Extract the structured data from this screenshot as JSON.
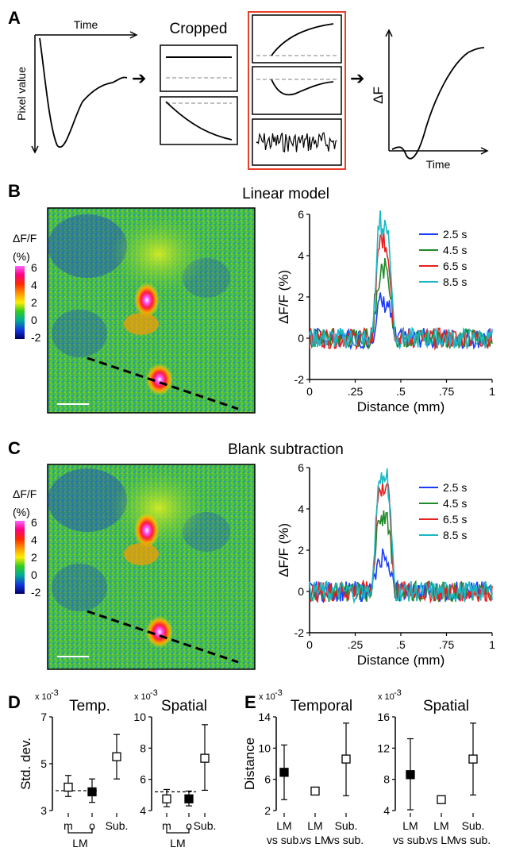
{
  "panels": {
    "A": "A",
    "B": "B",
    "C": "C",
    "D": "D",
    "E": "E"
  },
  "panelA": {
    "time_label": "Time",
    "pixel_label": "Pixel value",
    "cropped_label": "Cropped",
    "deltaF_label": "ΔF",
    "time_label2": "Time"
  },
  "colorbar": {
    "title_line1": "ΔF/F",
    "title_line2": "(%)",
    "ticks": [
      "6",
      "4",
      "2",
      "0",
      "-2"
    ],
    "colors": [
      "#ff00ff",
      "#ff2020",
      "#ff9900",
      "#ffff00",
      "#00dd00",
      "#00aaaa",
      "#0022dd",
      "#00006e"
    ]
  },
  "colors": {
    "2.5 s": "#1a3cff",
    "4.5 s": "#1f8a2a",
    "6.5 s": "#e8201f",
    "8.5 s": "#19b9c4",
    "panelA_box": "#e8402a"
  },
  "chart_data": [
    {
      "id": "B",
      "type": "line",
      "title": "Linear model",
      "xlabel": "Distance (mm)",
      "ylabel": "ΔF/F (%)",
      "xlim": [
        0,
        1
      ],
      "ylim": [
        -2,
        6
      ],
      "xticks": [
        "0",
        ".25",
        ".5",
        ".75",
        "1"
      ],
      "yticks": [
        "6",
        "4",
        "2",
        "0",
        "-2"
      ],
      "legend_position": "top-right",
      "series": [
        {
          "name": "2.5 s",
          "peak": 1.8
        },
        {
          "name": "4.5 s",
          "peak": 3.3
        },
        {
          "name": "6.5 s",
          "peak": 4.7
        },
        {
          "name": "8.5 s",
          "peak": 5.7
        }
      ]
    },
    {
      "id": "C",
      "type": "line",
      "title": "Blank subtraction",
      "xlabel": "Distance (mm)",
      "ylabel": "ΔF/F (%)",
      "xlim": [
        0,
        1
      ],
      "ylim": [
        -2,
        6
      ],
      "xticks": [
        "0",
        ".25",
        ".5",
        ".75",
        "1"
      ],
      "yticks": [
        "6",
        "4",
        "2",
        "0",
        "-2"
      ],
      "legend_position": "top-right",
      "series": [
        {
          "name": "2.5 s",
          "peak": 1.7
        },
        {
          "name": "4.5 s",
          "peak": 3.7
        },
        {
          "name": "6.5 s",
          "peak": 5.3
        },
        {
          "name": "8.5 s",
          "peak": 5.8
        }
      ]
    },
    {
      "id": "D-temporal",
      "type": "scatter",
      "title": "Temp.",
      "exponent": "x 10",
      "exponent_power": "-3",
      "ylabel": "Std. dev.",
      "ylim": [
        3,
        7
      ],
      "yticks": [
        "7",
        "5",
        "3"
      ],
      "categories": [
        "m",
        "o",
        "Sub."
      ],
      "group_label": "LM",
      "reference_line": 3.85,
      "points": [
        {
          "category": "m",
          "y": 4.0,
          "lo": 3.6,
          "hi": 4.5,
          "filled": false
        },
        {
          "category": "o",
          "y": 3.8,
          "lo": 3.35,
          "hi": 4.35,
          "filled": true
        },
        {
          "category": "Sub.",
          "y": 5.3,
          "lo": 4.35,
          "hi": 6.25,
          "filled": false
        }
      ]
    },
    {
      "id": "D-spatial",
      "type": "scatter",
      "title": "Spatial",
      "exponent": "x 10",
      "exponent_power": "-3",
      "ylim": [
        4,
        10
      ],
      "yticks": [
        "10",
        "8",
        "6",
        "4"
      ],
      "categories": [
        "m",
        "o",
        "Sub."
      ],
      "group_label": "LM",
      "reference_line": 5.2,
      "points": [
        {
          "category": "m",
          "y": 4.75,
          "lo": 4.25,
          "hi": 5.35,
          "filled": false
        },
        {
          "category": "o",
          "y": 4.75,
          "lo": 4.3,
          "hi": 5.25,
          "filled": true
        },
        {
          "category": "Sub.",
          "y": 7.35,
          "lo": 5.3,
          "hi": 9.5,
          "filled": false
        }
      ]
    },
    {
      "id": "E-temporal",
      "type": "scatter",
      "title": "Temporal",
      "exponent": "x 10",
      "exponent_power": "-3",
      "ylabel": "Distance",
      "ylim": [
        2,
        14
      ],
      "yticks": [
        "14",
        "10",
        "6",
        "2"
      ],
      "categories": [
        "LM|vs sub.",
        "LM|vs LM",
        "Sub.|vs sub."
      ],
      "points": [
        {
          "category": "LM|vs sub.",
          "y": 6.9,
          "lo": 3.4,
          "hi": 10.4,
          "filled": true
        },
        {
          "category": "LM|vs LM",
          "y": 4.5,
          "lo": 4.1,
          "hi": 4.9,
          "filled": false
        },
        {
          "category": "Sub.|vs sub.",
          "y": 8.6,
          "lo": 3.9,
          "hi": 13.2,
          "filled": false
        }
      ]
    },
    {
      "id": "E-spatial",
      "type": "scatter",
      "title": "Spatial",
      "exponent": "x 10",
      "exponent_power": "-3",
      "ylim": [
        4,
        16
      ],
      "yticks": [
        "16",
        "12",
        "8",
        "4"
      ],
      "categories": [
        "LM|vs sub.",
        "LM|vs LM",
        "Sub.|vs sub."
      ],
      "points": [
        {
          "category": "LM|vs sub.",
          "y": 8.6,
          "lo": 4.1,
          "hi": 13.2,
          "filled": true
        },
        {
          "category": "LM|vs LM",
          "y": 5.4,
          "lo": 4.95,
          "hi": 5.85,
          "filled": false
        },
        {
          "category": "Sub.|vs sub.",
          "y": 10.6,
          "lo": 6.0,
          "hi": 15.2,
          "filled": false
        }
      ]
    }
  ]
}
